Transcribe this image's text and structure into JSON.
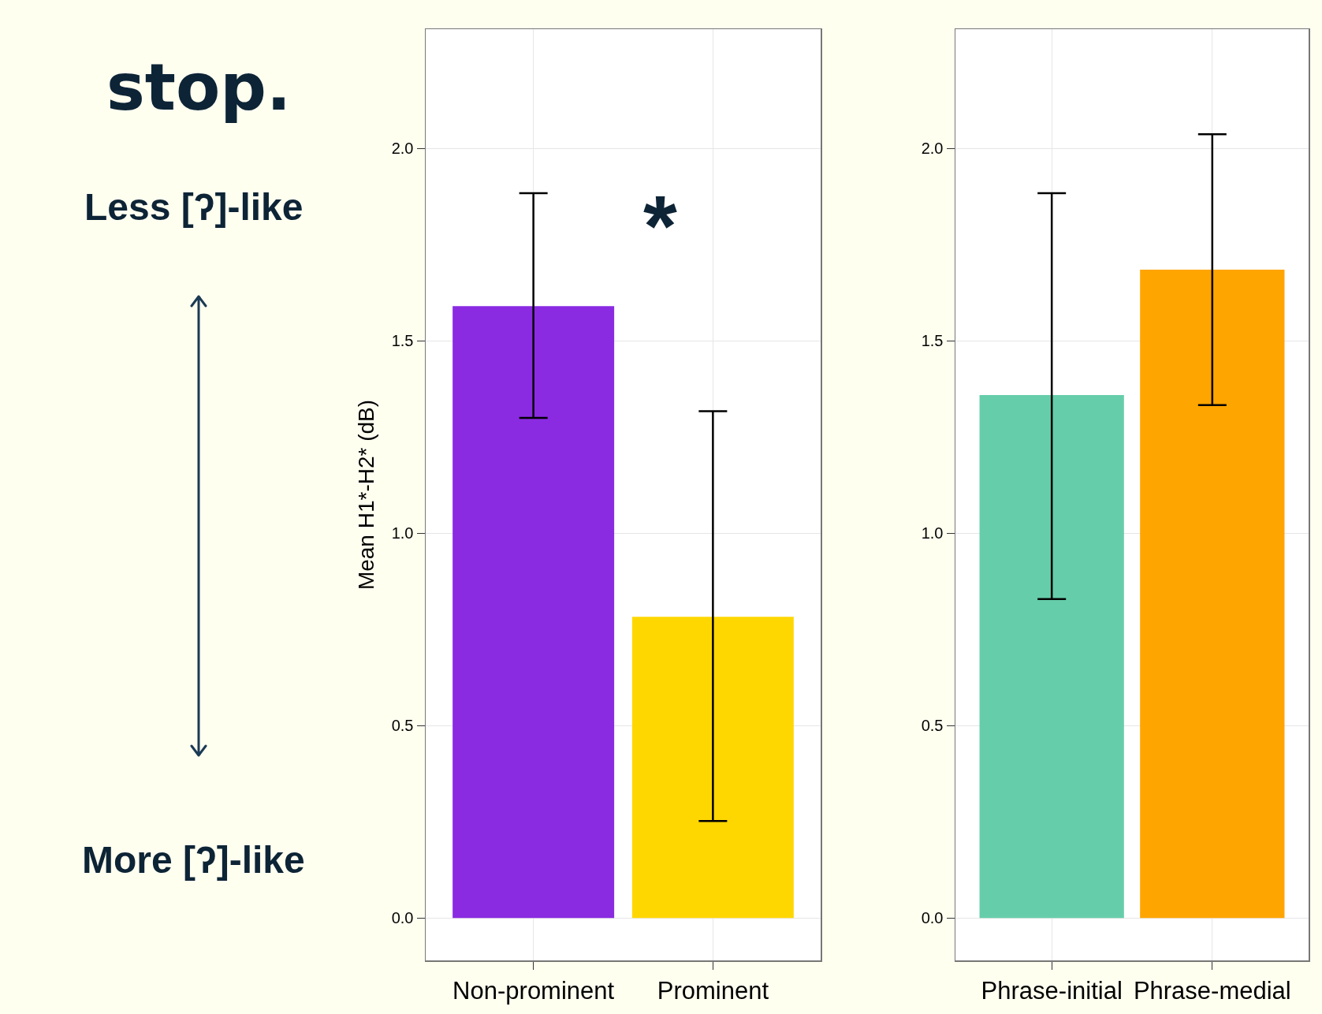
{
  "chart_data": [
    {
      "type": "bar",
      "title": "stop.",
      "ylabel": "Mean H1*-H2* (dB)",
      "categories": [
        "Non-prominent",
        "Prominent"
      ],
      "values": [
        1.59,
        0.783
      ],
      "colors": [
        "#8a2be2",
        "#ffd700"
      ],
      "errors": [
        [
          1.3,
          1.884
        ],
        [
          0.252,
          1.317
        ]
      ],
      "ylim": [
        -0.11,
        2.31
      ],
      "yticks": [
        {
          "value": 0,
          "label": "0.0"
        },
        {
          "value": 0.5,
          "label": "0.5"
        },
        {
          "value": 1,
          "label": "1.0"
        },
        {
          "value": 1.5,
          "label": "1.5"
        },
        {
          "value": 2,
          "label": "2.0"
        }
      ],
      "grid": true,
      "legend": false,
      "annotations": [
        "Less [ʔ]-like",
        "More [ʔ]-like",
        "*"
      ]
    },
    {
      "type": "bar",
      "categories": [
        "Phrase-initial",
        "Phrase-medial"
      ],
      "values": [
        1.359,
        1.685
      ],
      "colors": [
        "#66cdaa",
        "#ffa500"
      ],
      "errors": [
        [
          0.829,
          1.884
        ],
        [
          1.333,
          2.037
        ]
      ],
      "ylim": [
        -0.11,
        2.31
      ],
      "yticks": [
        {
          "value": 0,
          "label": "0.0"
        },
        {
          "value": 0.5,
          "label": "0.5"
        },
        {
          "value": 1,
          "label": "1.0"
        },
        {
          "value": 1.5,
          "label": "1.5"
        },
        {
          "value": 2,
          "label": "2.0"
        }
      ],
      "grid": true,
      "legend": false
    }
  ]
}
